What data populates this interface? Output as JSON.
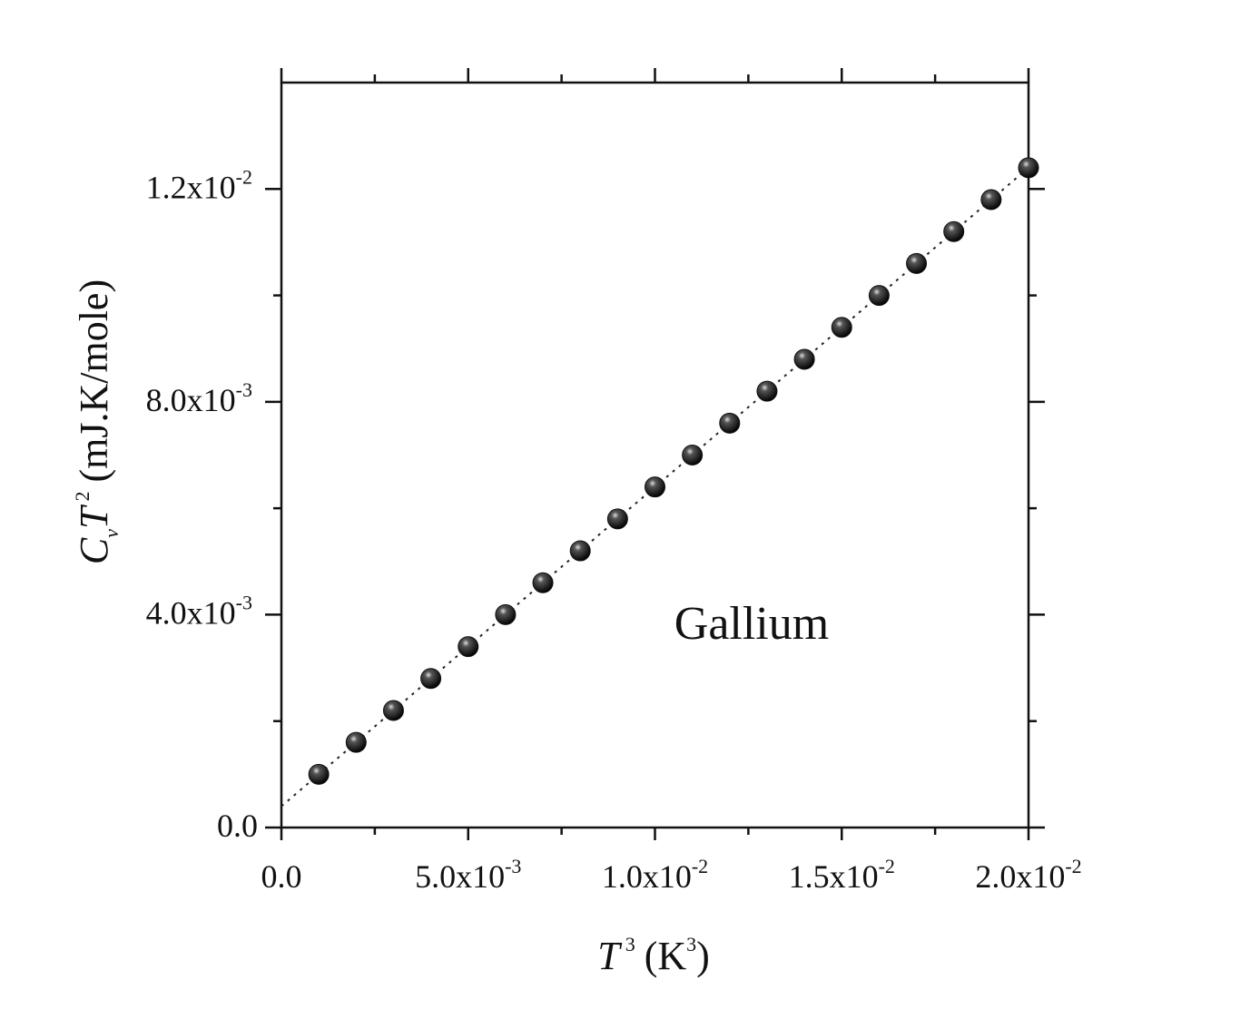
{
  "chart_data": {
    "type": "scatter",
    "x": [
      0.001,
      0.002,
      0.003,
      0.004,
      0.005,
      0.006,
      0.007,
      0.008,
      0.009,
      0.01,
      0.011,
      0.012,
      0.013,
      0.014,
      0.015,
      0.016,
      0.017,
      0.018,
      0.019,
      0.02
    ],
    "values": [
      0.001,
      0.0016,
      0.0022,
      0.0028,
      0.0034,
      0.004,
      0.0046,
      0.0052,
      0.0058,
      0.0064,
      0.007,
      0.0076,
      0.0082,
      0.0088,
      0.0094,
      0.01,
      0.0106,
      0.0112,
      0.0118,
      0.0124
    ],
    "color": "#111111",
    "fit": {
      "x": [
        0,
        0.02
      ],
      "values": [
        0.0004,
        0.0124
      ]
    },
    "xlim": [
      0,
      0.02
    ],
    "ylim": [
      0,
      0.014
    ],
    "xticks": [
      {
        "value": 0,
        "label": "0.0"
      },
      {
        "value": 0.005,
        "label": "5.0x10",
        "sup": "-3"
      },
      {
        "value": 0.01,
        "label": "1.0x10",
        "sup": "-2"
      },
      {
        "value": 0.015,
        "label": "1.5x10",
        "sup": "-2"
      },
      {
        "value": 0.02,
        "label": "2.0x10",
        "sup": "-2"
      }
    ],
    "xminorticks": [
      0.0025,
      0.0075,
      0.0125,
      0.0175
    ],
    "yticks": [
      {
        "value": 0,
        "label": "0.0"
      },
      {
        "value": 0.004,
        "label": "4.0x10",
        "sup": "-3"
      },
      {
        "value": 0.008,
        "label": "8.0x10",
        "sup": "-3"
      },
      {
        "value": 0.012,
        "label": "1.2x10",
        "sup": "-2"
      }
    ],
    "yminorticks": [
      0.002,
      0.006,
      0.01
    ],
    "xlabel": {
      "var": "T",
      "sup": "3",
      "unit": "(K",
      "unit_sup": "3",
      "close": ")"
    },
    "ylabel": {
      "symbol": "C",
      "sub": "v",
      "var": "T",
      "sup": "2",
      "unit": "(mJ.K/mole)"
    },
    "annotation": "Gallium"
  }
}
